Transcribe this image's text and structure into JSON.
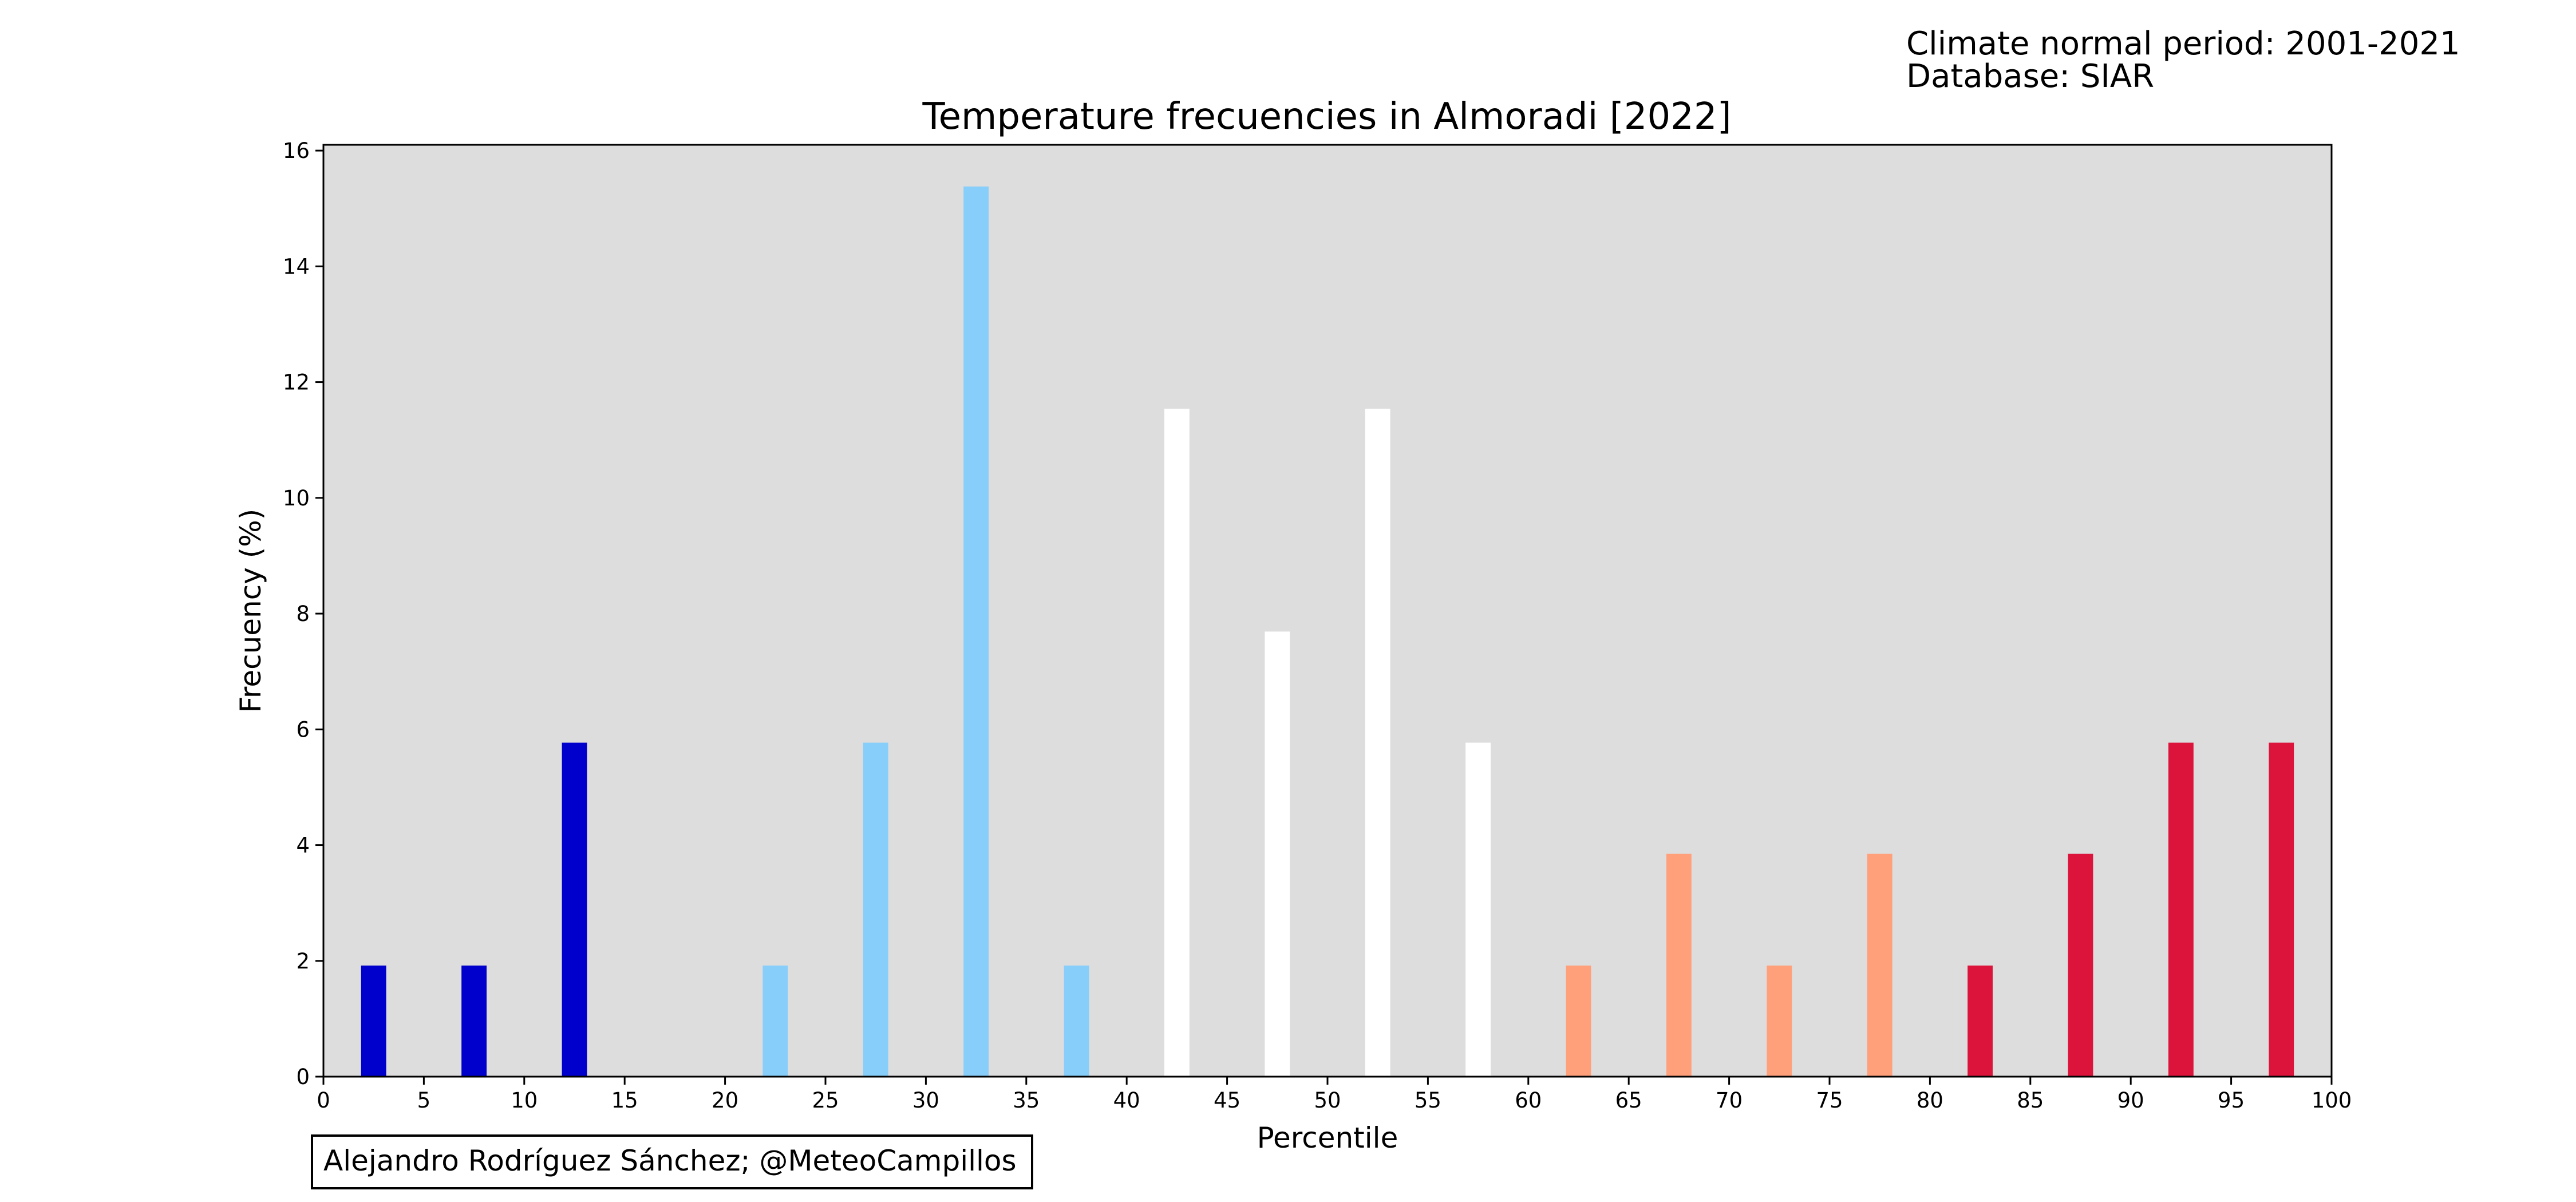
{
  "meta": {
    "period": "Climate normal period: 2001-2021",
    "database": "Database: SIAR"
  },
  "credit": "Alejandro Rodríguez Sánchez; @MeteoCampillos",
  "colors": {
    "plot_background": "#dddddd",
    "very_cold": "#0000cd",
    "cold": "#87cefa",
    "normal": "#ffffff",
    "warm": "#ffa07a",
    "very_warm": "#dc143c"
  },
  "chart_data": {
    "type": "bar",
    "title": "Temperature frecuencies in Almoradi [2022]",
    "xlabel": "Percentile",
    "ylabel": "Frecuency (%)",
    "xlim": [
      0,
      100
    ],
    "ylim": [
      0,
      16.1
    ],
    "xticks": [
      0,
      5,
      10,
      15,
      20,
      25,
      30,
      35,
      40,
      45,
      50,
      55,
      60,
      65,
      70,
      75,
      80,
      85,
      90,
      95,
      100
    ],
    "yticks": [
      0,
      2,
      4,
      6,
      8,
      10,
      12,
      14,
      16
    ],
    "bar_width": 1.25,
    "grid": false,
    "bars": [
      {
        "x": 2.5,
        "value": 1.92,
        "color": "#0000cd"
      },
      {
        "x": 7.5,
        "value": 1.92,
        "color": "#0000cd"
      },
      {
        "x": 12.5,
        "value": 5.77,
        "color": "#0000cd"
      },
      {
        "x": 22.5,
        "value": 1.92,
        "color": "#87cefa"
      },
      {
        "x": 27.5,
        "value": 5.77,
        "color": "#87cefa"
      },
      {
        "x": 32.5,
        "value": 15.38,
        "color": "#87cefa"
      },
      {
        "x": 37.5,
        "value": 1.92,
        "color": "#87cefa"
      },
      {
        "x": 42.5,
        "value": 11.54,
        "color": "#ffffff"
      },
      {
        "x": 47.5,
        "value": 7.69,
        "color": "#ffffff"
      },
      {
        "x": 52.5,
        "value": 11.54,
        "color": "#ffffff"
      },
      {
        "x": 57.5,
        "value": 5.77,
        "color": "#ffffff"
      },
      {
        "x": 62.5,
        "value": 1.92,
        "color": "#ffa07a"
      },
      {
        "x": 67.5,
        "value": 3.85,
        "color": "#ffa07a"
      },
      {
        "x": 72.5,
        "value": 1.92,
        "color": "#ffa07a"
      },
      {
        "x": 77.5,
        "value": 3.85,
        "color": "#ffa07a"
      },
      {
        "x": 82.5,
        "value": 1.92,
        "color": "#dc143c"
      },
      {
        "x": 87.5,
        "value": 3.85,
        "color": "#dc143c"
      },
      {
        "x": 92.5,
        "value": 5.77,
        "color": "#dc143c"
      },
      {
        "x": 97.5,
        "value": 5.77,
        "color": "#dc143c"
      }
    ]
  }
}
